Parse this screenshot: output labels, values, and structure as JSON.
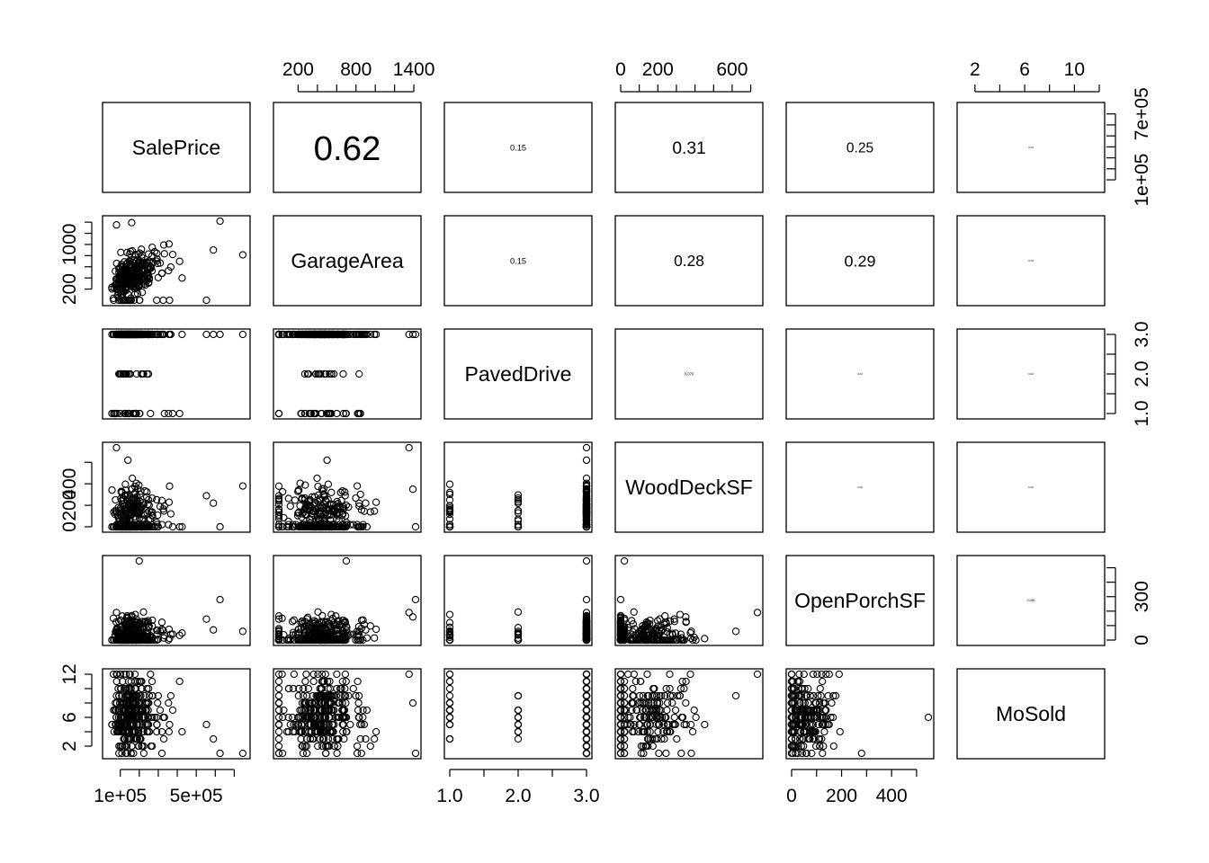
{
  "chart_data": {
    "type": "scatter",
    "plot_kind": "pairs-matrix",
    "variables": [
      "SalePrice",
      "GarageArea",
      "PavedDrive",
      "WoodDeckSF",
      "OpenPorchSF",
      "MoSold"
    ],
    "correlations": [
      {
        "row": 0,
        "col": 1,
        "value": "0.62"
      },
      {
        "row": 0,
        "col": 2,
        "value": "0.15"
      },
      {
        "row": 0,
        "col": 3,
        "value": "0.31"
      },
      {
        "row": 0,
        "col": 4,
        "value": "0.25"
      },
      {
        "row": 0,
        "col": 5,
        "value": "0.04"
      },
      {
        "row": 1,
        "col": 2,
        "value": "0.15"
      },
      {
        "row": 1,
        "col": 3,
        "value": "0.28"
      },
      {
        "row": 1,
        "col": 4,
        "value": "0.29"
      },
      {
        "row": 1,
        "col": 5,
        "value": "0.03"
      },
      {
        "row": 2,
        "col": 3,
        "value": "0.070"
      },
      {
        "row": 2,
        "col": 4,
        "value": "0.02"
      },
      {
        "row": 2,
        "col": 5,
        "value": "0.02"
      },
      {
        "row": 3,
        "col": 4,
        "value": "0.02"
      },
      {
        "row": 3,
        "col": 5,
        "value": "0.02"
      },
      {
        "row": 4,
        "col": 5,
        "value": "0.056"
      }
    ],
    "ranges": [
      [
        34900,
        755000
      ],
      [
        0,
        1418
      ],
      [
        1,
        3
      ],
      [
        0,
        736
      ],
      [
        0,
        547
      ],
      [
        1,
        12
      ]
    ],
    "axes": {
      "top": [
        {
          "col": 1,
          "ticks": [
            200,
            400,
            600,
            800,
            1000,
            1200,
            1400
          ],
          "labels": [
            "200",
            "800",
            "1400"
          ]
        },
        {
          "col": 3,
          "ticks": [
            0,
            100,
            200,
            300,
            400,
            500,
            600,
            700
          ],
          "labels": [
            "0",
            "200",
            "600"
          ]
        },
        {
          "col": 5,
          "ticks": [
            2,
            4,
            6,
            8,
            10,
            12
          ],
          "labels": [
            "2",
            "6",
            "10"
          ]
        }
      ],
      "bottom": [
        {
          "col": 0,
          "ticks": [
            100000,
            200000,
            300000,
            400000,
            500000,
            600000,
            700000
          ],
          "labels": [
            "1e+05",
            "5e+05"
          ]
        },
        {
          "col": 2,
          "ticks": [
            1.0,
            1.5,
            2.0,
            2.5,
            3.0
          ],
          "labels": [
            "1.0",
            "2.0",
            "3.0"
          ]
        },
        {
          "col": 4,
          "ticks": [
            0,
            100,
            200,
            300,
            400,
            500
          ],
          "labels": [
            "0",
            "200",
            "400"
          ]
        }
      ],
      "left": [
        {
          "row": 1,
          "ticks": [
            200,
            400,
            600,
            800,
            1000,
            1200,
            1400
          ],
          "labels": [
            "200",
            "1000"
          ]
        },
        {
          "row": 3,
          "ticks": [
            0,
            200,
            400,
            600
          ],
          "labels": [
            "0",
            "200",
            "400"
          ]
        },
        {
          "row": 5,
          "ticks": [
            2,
            4,
            6,
            8,
            10,
            12
          ],
          "labels": [
            "2",
            "6",
            "12"
          ]
        }
      ],
      "right": [
        {
          "row": 0,
          "ticks": [
            100000,
            200000,
            300000,
            400000,
            500000,
            600000,
            700000
          ],
          "labels": [
            "1e+05",
            "7e+05"
          ]
        },
        {
          "row": 2,
          "ticks": [
            1.0,
            1.5,
            2.0,
            2.5,
            3.0
          ],
          "labels": [
            "1.0",
            "2.0",
            "3.0"
          ]
        },
        {
          "row": 4,
          "ticks": [
            0,
            100,
            200,
            300,
            400,
            500
          ],
          "labels": [
            "0",
            "300"
          ]
        }
      ]
    }
  }
}
